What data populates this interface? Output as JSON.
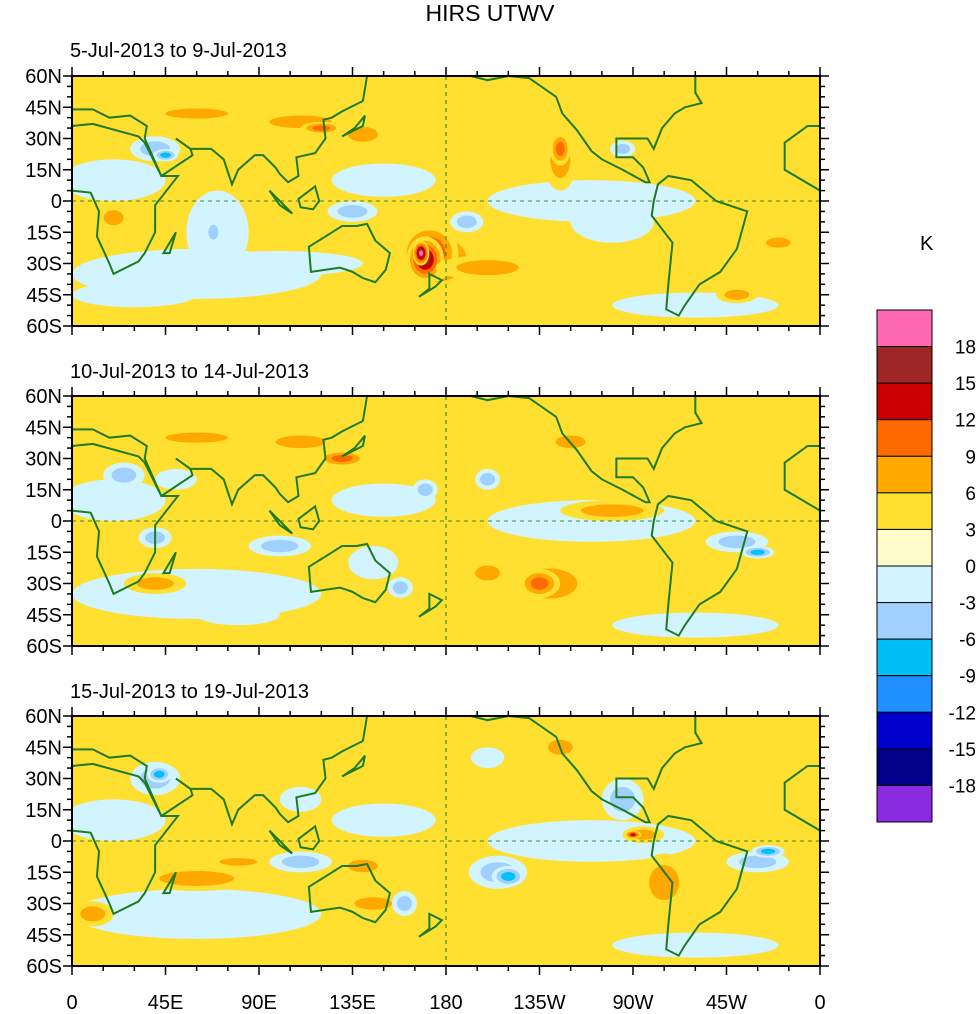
{
  "title": "HIRS UTWV",
  "panels": [
    {
      "title": "5-Jul-2013 to 9-Jul-2013"
    },
    {
      "title": "10-Jul-2013 to 14-Jul-2013"
    },
    {
      "title": "15-Jul-2013 to 19-Jul-2013"
    }
  ],
  "lat_labels": [
    "60N",
    "45N",
    "30N",
    "15N",
    "0",
    "15S",
    "30S",
    "45S",
    "60S"
  ],
  "lon_labels": [
    "0",
    "45E",
    "90E",
    "135E",
    "180",
    "135W",
    "90W",
    "45W",
    "0"
  ],
  "colorbar": {
    "units": "K",
    "labels": [
      "18",
      "15",
      "12",
      "9",
      "6",
      "3",
      "0",
      "-3",
      "-6",
      "-9",
      "-12",
      "-15",
      "-18"
    ],
    "colors": [
      "#FF69B4",
      "#9E2626",
      "#C80000",
      "#FF6A00",
      "#FFA800",
      "#FFDF30",
      "#FFFCCC",
      "#D2F4FF",
      "#A0D0FF",
      "#00C0F8",
      "#1E90FF",
      "#0000CD",
      "#00008B",
      "#8A2BE2"
    ]
  },
  "land_color": "#1E7B1E"
}
